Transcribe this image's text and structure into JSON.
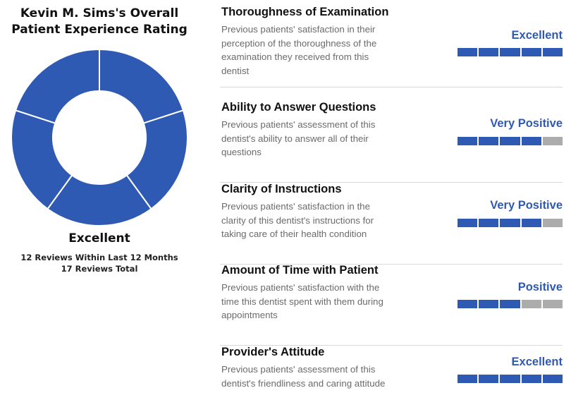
{
  "overall": {
    "title_line1": "Kevin M. Sims's Overall",
    "title_line2": "Patient Experience Rating",
    "rating": "Excellent",
    "reviews_recent": "12 Reviews Within Last 12 Months",
    "reviews_total": "17 Reviews Total",
    "donut_segments": 5,
    "donut_filled": 5
  },
  "colors": {
    "accent": "#2f5ab4",
    "empty": "#acacac",
    "divider": "#d9d9d9"
  },
  "metrics": [
    {
      "title": "Thoroughness of Examination",
      "desc_lines": [
        "Previous patients' satisfaction in their",
        "perception of the thoroughness of the",
        "examination they received from this",
        "dentist"
      ],
      "rating": "Excellent",
      "score": 5,
      "max": 5
    },
    {
      "title": "Ability to Answer Questions",
      "desc_lines": [
        "Previous patients' assessment of this",
        "dentist's ability to answer all of their",
        "questions"
      ],
      "rating": "Very Positive",
      "score": 4,
      "max": 5
    },
    {
      "title": "Clarity of Instructions",
      "desc_lines": [
        "Previous patients' satisfaction in the",
        "clarity of this dentist's instructions for",
        "taking care of their health condition"
      ],
      "rating": "Very Positive",
      "score": 4,
      "max": 5
    },
    {
      "title": "Amount of Time with Patient",
      "desc_lines": [
        "Previous patients' satisfaction with the",
        "time this dentist spent with them during",
        "appointments"
      ],
      "rating": "Positive",
      "score": 3,
      "max": 5
    },
    {
      "title": "Provider's Attitude",
      "desc_lines": [
        "Previous patients' assessment of this",
        "dentist's friendliness and caring attitude"
      ],
      "rating": "Excellent",
      "score": 5,
      "max": 5
    }
  ]
}
